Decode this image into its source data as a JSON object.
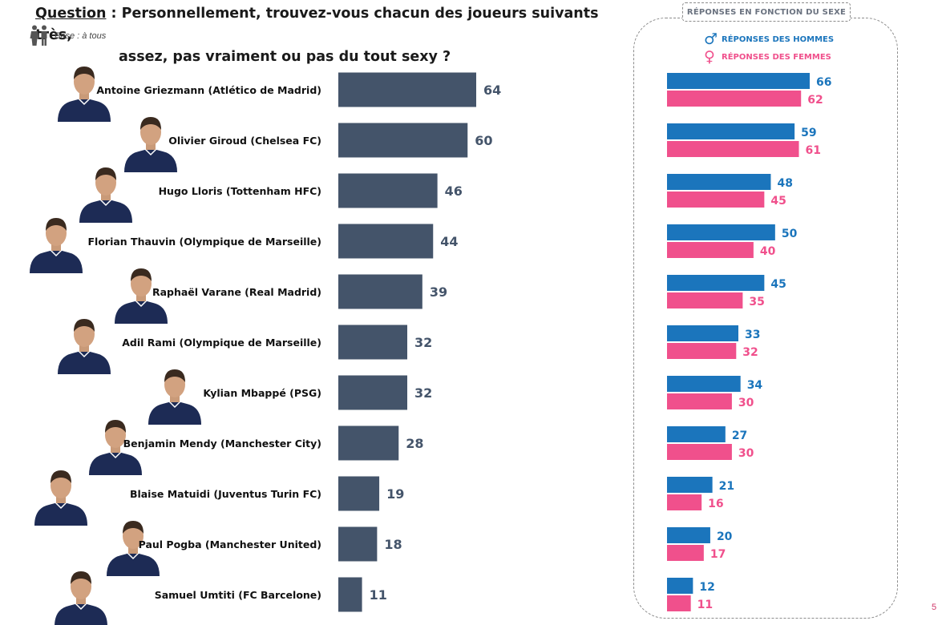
{
  "header": {
    "question_label": "Question",
    "question_text_1": " : Personnellement, trouvez-vous chacun des joueurs suivants très,",
    "question_text_2": "assez, pas vraiment ou pas du tout sexy ?",
    "base": "Base : à tous"
  },
  "icons": {
    "people": "man-woman-icon",
    "male": "male-symbol-icon",
    "female": "female-symbol-icon"
  },
  "colors": {
    "main_bar": "#44546a",
    "male": "#1b75bc",
    "female": "#f0508c",
    "page_number": "#d03a6b"
  },
  "panel": {
    "title": "RÉPONSES EN FONCTION DU SEXE",
    "legend_male_symbol": "♂",
    "legend_male": "RÉPONSES DES HOMMES",
    "legend_female_symbol": "♀",
    "legend_female": "RÉPONSES DES FEMMES"
  },
  "page_number": "5",
  "chart_data": [
    {
      "type": "bar",
      "orientation": "horizontal",
      "categories": [
        "Antoine Griezmann (Atlético de Madrid)",
        "Olivier Giroud (Chelsea FC)",
        "Hugo Lloris (Tottenham HFC)",
        "Florian Thauvin (Olympique de Marseille)",
        "Raphaël Varane (Real Madrid)",
        "Adil Rami (Olympique de Marseille)",
        "Kylian Mbappé (PSG)",
        "Benjamin Mendy (Manchester City)",
        "Blaise Matuidi (Juventus Turin FC)",
        "Paul Pogba (Manchester United)",
        "Samuel Umtiti (FC Barcelone)"
      ],
      "values": [
        64,
        60,
        46,
        44,
        39,
        32,
        32,
        28,
        19,
        18,
        11
      ],
      "xlim": [
        0,
        70
      ],
      "grid": false,
      "data_labels": true
    },
    {
      "type": "bar",
      "orientation": "horizontal",
      "title": "RÉPONSES EN FONCTION DU SEXE",
      "categories": [
        "Antoine Griezmann (Atlético de Madrid)",
        "Olivier Giroud (Chelsea FC)",
        "Hugo Lloris (Tottenham HFC)",
        "Florian Thauvin (Olympique de Marseille)",
        "Raphaël Varane (Real Madrid)",
        "Adil Rami (Olympique de Marseille)",
        "Kylian Mbappé (PSG)",
        "Benjamin Mendy (Manchester City)",
        "Blaise Matuidi (Juventus Turin FC)",
        "Paul Pogba (Manchester United)",
        "Samuel Umtiti (FC Barcelone)"
      ],
      "series": [
        {
          "name": "RÉPONSES DES HOMMES",
          "values": [
            66,
            59,
            48,
            50,
            45,
            33,
            34,
            27,
            21,
            20,
            12
          ]
        },
        {
          "name": "RÉPONSES DES FEMMES",
          "values": [
            62,
            61,
            45,
            40,
            35,
            32,
            30,
            30,
            16,
            17,
            11
          ]
        }
      ],
      "xlim": [
        0,
        70
      ],
      "legend": "top",
      "grid": false,
      "data_labels": true
    }
  ]
}
